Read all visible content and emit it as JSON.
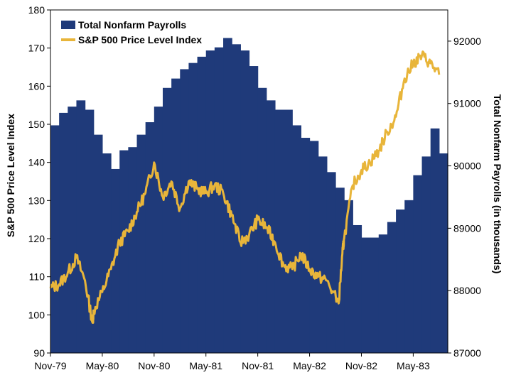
{
  "chart_data": {
    "type": "bar+line",
    "colors": {
      "payrolls": "#1f3a7a",
      "sp500": "#e8b53a",
      "axis": "#000000"
    },
    "legend": {
      "placement": "top-left",
      "entries": [
        "Total Nonfarm Payrolls",
        "S&P 500 Price Level Index"
      ]
    },
    "ylabel_left": "S&P 500 Price Level Index",
    "ylabel_right": "Total Nonfarm Payrolls (in thousands)",
    "ylim_left": [
      90,
      180
    ],
    "ylim_right": [
      87000,
      92500
    ],
    "x_range": [
      "1979-11",
      "1983-09"
    ],
    "x_ticks": [
      "Nov-79",
      "May-80",
      "Nov-80",
      "May-81",
      "Nov-81",
      "May-82",
      "Nov-82",
      "May-83"
    ],
    "y_ticks_left": [
      "90",
      "100",
      "110",
      "120",
      "130",
      "140",
      "150",
      "160",
      "170",
      "180"
    ],
    "y_ticks_right": [
      "87000",
      "88000",
      "89000",
      "90000",
      "91000",
      "92000"
    ],
    "payrolls": {
      "name": "Total Nonfarm Payrolls",
      "months": [
        "1979-11",
        "1979-12",
        "1980-01",
        "1980-02",
        "1980-03",
        "1980-04",
        "1980-05",
        "1980-06",
        "1980-07",
        "1980-08",
        "1980-09",
        "1980-10",
        "1980-11",
        "1980-12",
        "1981-01",
        "1981-02",
        "1981-03",
        "1981-04",
        "1981-05",
        "1981-06",
        "1981-07",
        "1981-08",
        "1981-09",
        "1981-10",
        "1981-11",
        "1981-12",
        "1982-01",
        "1982-02",
        "1982-03",
        "1982-04",
        "1982-05",
        "1982-06",
        "1982-07",
        "1982-08",
        "1982-09",
        "1982-10",
        "1982-11",
        "1982-12",
        "1983-01",
        "1983-02",
        "1983-03",
        "1983-04",
        "1983-05",
        "1983-06",
        "1983-07",
        "1983-08"
      ],
      "values": [
        90650,
        90850,
        90950,
        91050,
        90900,
        90500,
        90200,
        89950,
        90250,
        90300,
        90500,
        90700,
        90950,
        91250,
        91400,
        91550,
        91650,
        91750,
        91850,
        91900,
        92050,
        91950,
        91850,
        91600,
        91250,
        91050,
        90900,
        90900,
        90650,
        90450,
        90400,
        90150,
        89900,
        89650,
        89450,
        89050,
        88850,
        88850,
        88900,
        89100,
        89300,
        89450,
        89850,
        90150,
        90600,
        90200
      ]
    },
    "sp500": {
      "name": "S&P 500 Price Level Index",
      "points": [
        [
          "1979-11",
          107
        ],
        [
          "1979-12",
          108
        ],
        [
          "1980-01",
          111
        ],
        [
          "1980-02",
          115
        ],
        [
          "1980-03",
          109
        ],
        [
          "1980-03-27",
          98
        ],
        [
          "1980-04",
          101
        ],
        [
          "1980-05",
          106
        ],
        [
          "1980-06",
          112
        ],
        [
          "1980-07",
          119
        ],
        [
          "1980-08",
          122
        ],
        [
          "1980-09",
          127
        ],
        [
          "1980-10",
          132
        ],
        [
          "1980-11",
          140
        ],
        [
          "1980-12",
          131
        ],
        [
          "1981-01",
          135
        ],
        [
          "1981-02",
          128
        ],
        [
          "1981-03",
          135
        ],
        [
          "1981-04",
          133
        ],
        [
          "1981-05",
          132
        ],
        [
          "1981-06",
          134
        ],
        [
          "1981-07",
          132
        ],
        [
          "1981-08",
          126
        ],
        [
          "1981-09",
          119
        ],
        [
          "1981-10",
          121
        ],
        [
          "1981-11",
          125
        ],
        [
          "1981-12",
          123
        ],
        [
          "1982-01",
          119
        ],
        [
          "1982-02",
          113
        ],
        [
          "1982-03",
          112
        ],
        [
          "1982-04",
          116
        ],
        [
          "1982-05",
          112
        ],
        [
          "1982-06",
          110
        ],
        [
          "1982-07",
          109
        ],
        [
          "1982-08-12",
          103
        ],
        [
          "1982-08-25",
          116
        ],
        [
          "1982-09",
          120
        ],
        [
          "1982-10",
          134
        ],
        [
          "1982-11",
          138
        ],
        [
          "1982-12",
          140
        ],
        [
          "1983-01",
          143
        ],
        [
          "1983-02",
          148
        ],
        [
          "1983-03",
          152
        ],
        [
          "1983-04",
          162
        ],
        [
          "1983-05",
          166
        ],
        [
          "1983-06",
          168
        ],
        [
          "1983-07",
          166
        ],
        [
          "1983-08",
          163
        ]
      ]
    }
  }
}
